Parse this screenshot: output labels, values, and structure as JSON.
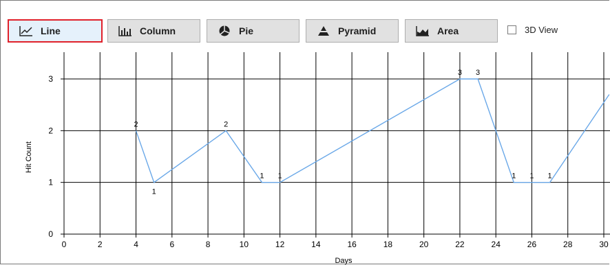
{
  "toolbar": {
    "buttons": [
      {
        "label": "Line",
        "icon": "line-chart-icon",
        "active": true
      },
      {
        "label": "Column",
        "icon": "column-chart-icon",
        "active": false
      },
      {
        "label": "Pie",
        "icon": "pie-chart-icon",
        "active": false
      },
      {
        "label": "Pyramid",
        "icon": "pyramid-chart-icon",
        "active": false
      },
      {
        "label": "Area",
        "icon": "area-chart-icon",
        "active": false
      }
    ],
    "view3d_label": "3D View",
    "view3d_checked": false
  },
  "colors": {
    "series": "#6aa8e8",
    "grid": "#000000",
    "active_border": "#e0202a"
  },
  "chart_data": {
    "type": "line",
    "title": "",
    "xlabel": "Days",
    "ylabel": "Hit Count",
    "xlim": [
      0,
      30
    ],
    "ylim": [
      0,
      3
    ],
    "x_ticks": [
      0,
      2,
      4,
      6,
      8,
      10,
      12,
      14,
      16,
      18,
      20,
      22,
      24,
      26,
      28,
      30
    ],
    "y_ticks": [
      0,
      1,
      2,
      3
    ],
    "grid": true,
    "series": [
      {
        "x": [
          4,
          5,
          9,
          11,
          12,
          22,
          23,
          25,
          26,
          27,
          30.3
        ],
        "y": [
          2,
          1,
          2,
          1,
          1,
          3,
          3,
          1,
          1,
          1,
          2.7
        ],
        "labels": [
          "2",
          "1",
          "2",
          "1",
          "1",
          "3",
          "3",
          "1",
          "1",
          "1",
          ""
        ]
      }
    ]
  }
}
